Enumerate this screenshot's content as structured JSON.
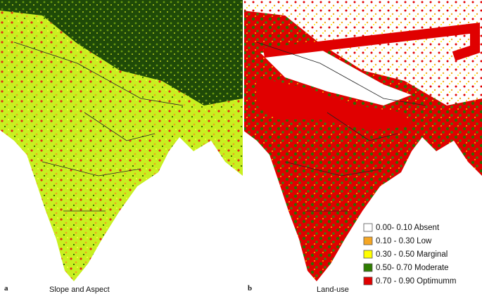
{
  "panels": [
    {
      "letter": "a",
      "caption": "Slope and Aspect"
    },
    {
      "letter": "b",
      "caption": "Land-use"
    }
  ],
  "legend": {
    "items": [
      {
        "label": "0.00- 0.10 Absent",
        "color": "#ffffff"
      },
      {
        "label": "0.10 - 0.30 Low",
        "color": "#f5a623"
      },
      {
        "label": "0.30 - 0.50 Marginal",
        "color": "#ffff00"
      },
      {
        "label": "0.50- 0.70 Moderate",
        "color": "#2e7d00"
      },
      {
        "label": "0.70 - 0.90 Optimumm",
        "color": "#e00000"
      }
    ]
  }
}
